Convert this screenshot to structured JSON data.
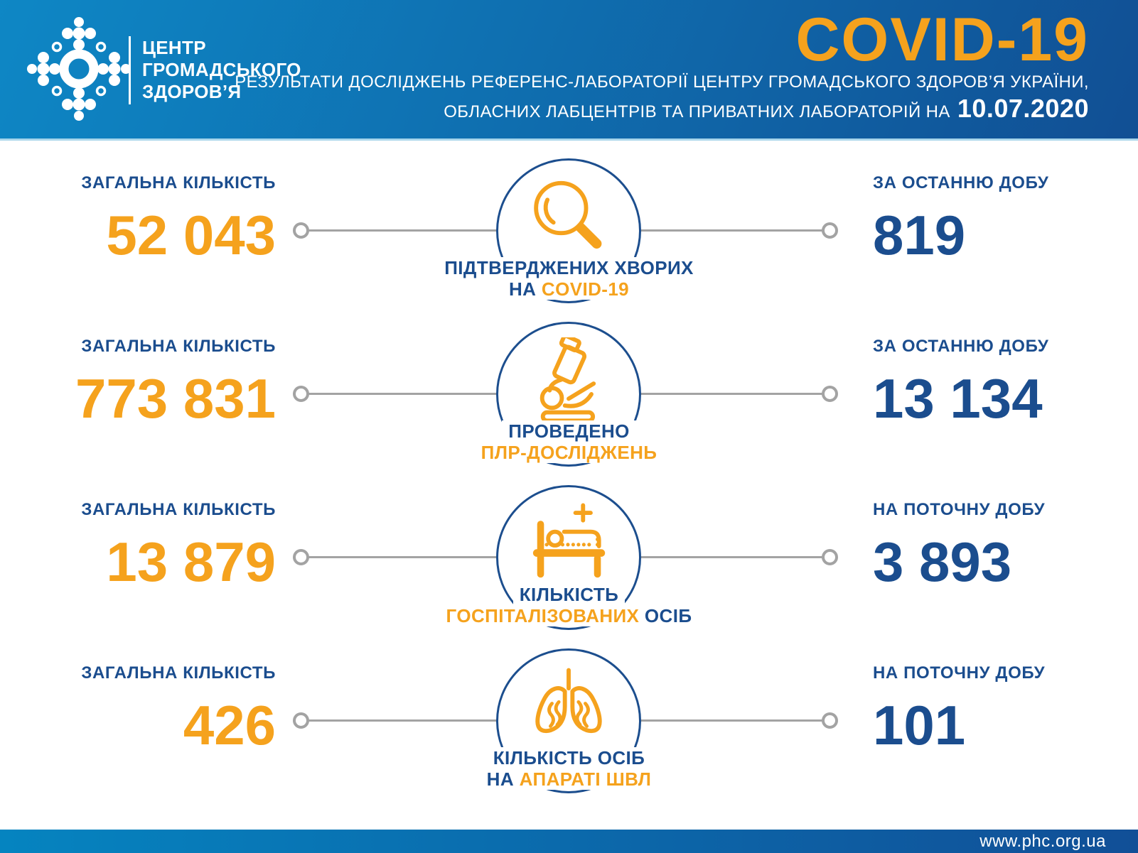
{
  "header": {
    "logo_text_lines": [
      "ЦЕНТР",
      "ГРОМАДСЬКОГО",
      "ЗДОРОВ’Я"
    ],
    "title": "COVID-19",
    "subtitle_line1": "РЕЗУЛЬТАТИ ДОСЛІДЖЕНЬ РЕФЕРЕНС-ЛАБОРАТОРІЇ ЦЕНТРУ ГРОМАДСЬКОГО ЗДОРОВ’Я УКРАЇНИ,",
    "subtitle_line2_prefix": "ОБЛАСНИХ ЛАБЦЕНТРІВ ТА ПРИВАТНИХ ЛАБОРАТОРІЙ НА",
    "report_date": "10.07.2020"
  },
  "colors": {
    "orange": "#F5A21D",
    "blue": "#1B4D8E",
    "gray": "#A3A3A3"
  },
  "stats": [
    {
      "total_label": "ЗАГАЛЬНА КІЛЬКІСТЬ",
      "total_value": "52 043",
      "period_label": "ЗА ОСТАННЮ ДОБУ",
      "period_value": "819",
      "icon": "magnifier-icon",
      "caption": [
        [
          {
            "text": "ПІДТВЕРДЖЕНИХ ХВОРИХ",
            "color": "blue"
          }
        ],
        [
          {
            "text": "НА ",
            "color": "blue"
          },
          {
            "text": "COVID-19",
            "color": "orange"
          }
        ]
      ]
    },
    {
      "total_label": "ЗАГАЛЬНА КІЛЬКІСТЬ",
      "total_value": "773 831",
      "period_label": "ЗА ОСТАННЮ ДОБУ",
      "period_value": "13 134",
      "icon": "microscope-icon",
      "caption": [
        [
          {
            "text": "ПРОВЕДЕНО",
            "color": "blue"
          }
        ],
        [
          {
            "text": "ПЛР-ДОСЛІДЖЕНЬ",
            "color": "orange"
          }
        ]
      ]
    },
    {
      "total_label": "ЗАГАЛЬНА КІЛЬКІСТЬ",
      "total_value": "13 879",
      "period_label": "НА ПОТОЧНУ ДОБУ",
      "period_value": "3 893",
      "icon": "hospital-bed-icon",
      "caption": [
        [
          {
            "text": "КІЛЬКІСТЬ",
            "color": "blue"
          }
        ],
        [
          {
            "text": "ГОСПІТАЛІЗОВАНИХ ",
            "color": "orange"
          },
          {
            "text": "ОСІБ",
            "color": "blue"
          }
        ]
      ]
    },
    {
      "total_label": "ЗАГАЛЬНА КІЛЬКІСТЬ",
      "total_value": "426",
      "period_label": "НА ПОТОЧНУ ДОБУ",
      "period_value": "101",
      "icon": "lungs-icon",
      "caption": [
        [
          {
            "text": "КІЛЬКІСТЬ ОСІБ",
            "color": "blue"
          }
        ],
        [
          {
            "text": "НА ",
            "color": "blue"
          },
          {
            "text": "АПАРАТІ ШВЛ",
            "color": "orange"
          }
        ]
      ]
    }
  ],
  "footer": {
    "website": "www.phc.org.ua"
  }
}
